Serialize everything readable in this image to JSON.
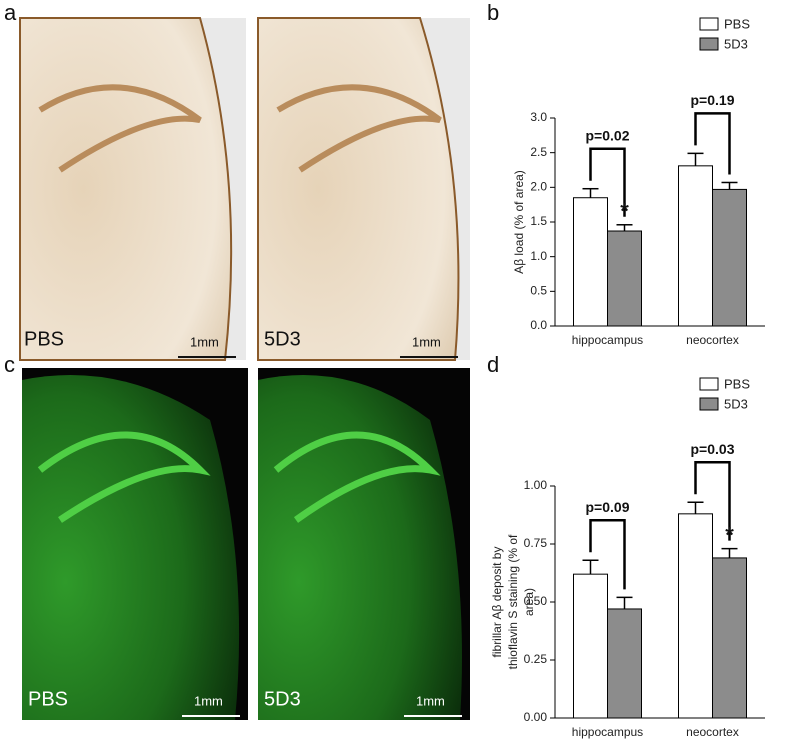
{
  "panels": {
    "a": {
      "label": "a",
      "left": {
        "label": "PBS",
        "scale": "1mm"
      },
      "right": {
        "label": "5D3",
        "scale": "1mm"
      }
    },
    "c": {
      "label": "c",
      "left": {
        "label": "PBS",
        "scale": "1mm"
      },
      "right": {
        "label": "5D3",
        "scale": "1mm"
      }
    }
  },
  "chart_data": [
    {
      "type": "bar",
      "panel_label": "b",
      "y_label": [
        "Aβ load (% of area)"
      ],
      "categories": [
        "hippocampus",
        "neocortex"
      ],
      "series": [
        {
          "name": "PBS",
          "color": "#ffffff",
          "values": [
            1.85,
            2.31
          ],
          "errors": [
            0.13,
            0.18
          ]
        },
        {
          "name": "5D3",
          "color": "#8c8c8c",
          "values": [
            1.37,
            1.97
          ],
          "errors": [
            0.09,
            0.1
          ]
        }
      ],
      "p_values": [
        "p=0.02",
        "p=0.19"
      ],
      "significance": [
        "*",
        null
      ],
      "ylim": [
        0,
        3.0
      ],
      "yticks": [
        {
          "value": 0,
          "label": "0.0"
        },
        0.5,
        {
          "value": 1,
          "label": "1.0"
        },
        1.5,
        {
          "value": 2,
          "label": "2.0"
        },
        2.5,
        {
          "value": 3,
          "label": "3.0"
        }
      ]
    },
    {
      "type": "bar",
      "panel_label": "d",
      "y_label": [
        "fibrillar Aβ deposit by",
        "thioflavin S staining (% of",
        "area)"
      ],
      "categories": [
        "hippocampus",
        "neocortex"
      ],
      "series": [
        {
          "name": "PBS",
          "color": "#ffffff",
          "values": [
            0.62,
            0.88
          ],
          "errors": [
            0.06,
            0.05
          ]
        },
        {
          "name": "5D3",
          "color": "#8c8c8c",
          "values": [
            0.47,
            0.69
          ],
          "errors": [
            0.05,
            0.04
          ]
        }
      ],
      "p_values": [
        "p=0.09",
        "p=0.03"
      ],
      "significance": [
        null,
        "*"
      ],
      "ylim": [
        0,
        1.0
      ],
      "yticks": [
        {
          "value": 0,
          "label": "0.00"
        },
        0.25,
        {
          "value": 0.5,
          "label": "0.50"
        },
        0.75,
        {
          "value": 1,
          "label": "1.00"
        }
      ]
    }
  ]
}
